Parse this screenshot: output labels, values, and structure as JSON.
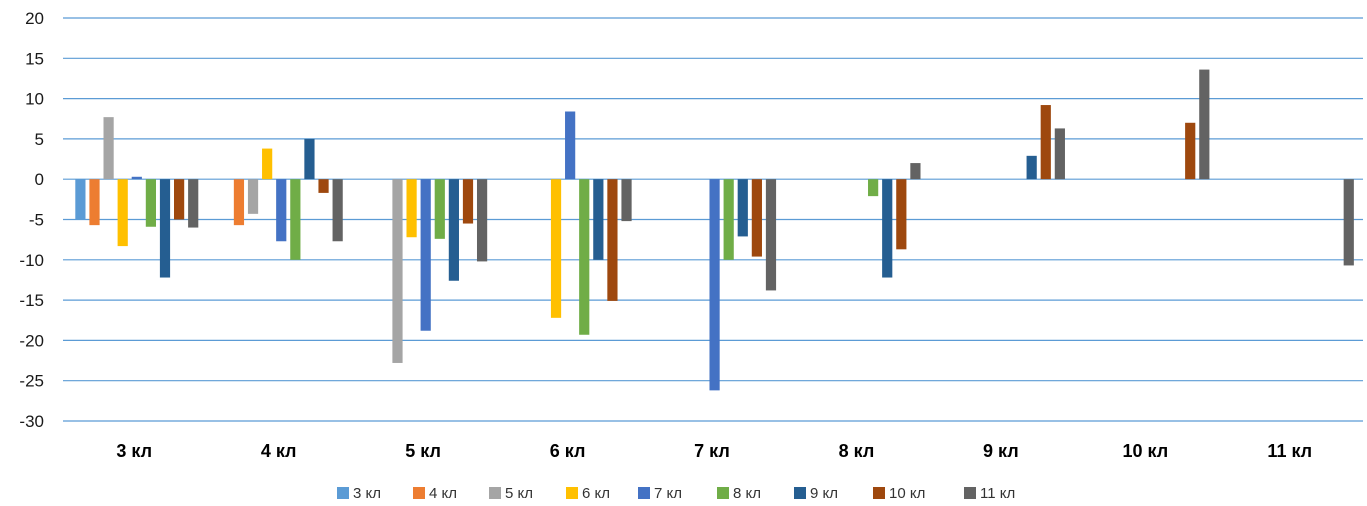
{
  "chart_data": {
    "type": "bar",
    "title": "",
    "xlabel": "",
    "ylabel": "",
    "ylim": [
      -30,
      20
    ],
    "yticks": [
      20,
      15,
      10,
      5,
      0,
      -5,
      -10,
      -15,
      -20,
      -25,
      -30
    ],
    "grid": true,
    "legend_position": "bottom",
    "categories": [
      "3 кл",
      "4 кл",
      "5 кл",
      "6 кл",
      "7 кл",
      "8 кл",
      "9 кл",
      "10 кл",
      "11 кл"
    ],
    "series": [
      {
        "name": "3 кл",
        "color": "#5b9bd5",
        "values": [
          -5,
          null,
          null,
          null,
          null,
          null,
          null,
          null,
          null
        ]
      },
      {
        "name": "4 кл",
        "color": "#ed7d31",
        "values": [
          -5.7,
          -5.7,
          null,
          null,
          null,
          null,
          null,
          null,
          null
        ]
      },
      {
        "name": "5 кл",
        "color": "#a5a5a5",
        "values": [
          7.7,
          -4.3,
          -22.8,
          null,
          null,
          null,
          null,
          null,
          null
        ]
      },
      {
        "name": "6 кл",
        "color": "#ffc000",
        "values": [
          -8.3,
          3.8,
          -7.2,
          -17.2,
          null,
          null,
          null,
          null,
          null
        ]
      },
      {
        "name": "7 кл",
        "color": "#4472c4",
        "values": [
          0.3,
          -7.7,
          -18.8,
          8.4,
          -26.2,
          null,
          null,
          null,
          null
        ]
      },
      {
        "name": "8 кл",
        "color": "#70ad47",
        "values": [
          -5.9,
          -10,
          -7.4,
          -19.3,
          -10,
          -2.1,
          null,
          null,
          null
        ]
      },
      {
        "name": "9 кл",
        "color": "#255e91",
        "values": [
          -12.2,
          5,
          -12.6,
          -10,
          -7.1,
          -12.2,
          2.9,
          null,
          null
        ]
      },
      {
        "name": "10 кл",
        "color": "#9e480e",
        "values": [
          -5,
          -1.7,
          -5.5,
          -15.1,
          -9.6,
          -8.7,
          9.2,
          7,
          null
        ]
      },
      {
        "name": "11 кл",
        "color": "#636363",
        "values": [
          -6,
          -7.7,
          -10.2,
          -5.2,
          -13.8,
          2,
          6.3,
          13.6,
          -10.7
        ]
      }
    ]
  }
}
